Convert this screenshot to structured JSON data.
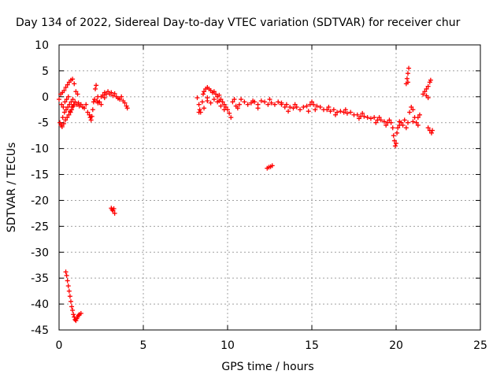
{
  "chart_data": {
    "type": "scatter",
    "title": "Day 134 of 2022, Sidereal Day-to-day VTEC variation (SDTVAR) for receiver chur",
    "xlabel": "GPS time / hours",
    "ylabel": "SDTVAR / TECUs",
    "xlim": [
      0,
      25
    ],
    "ylim": [
      -45,
      10
    ],
    "xticks": [
      0,
      5,
      10,
      15,
      20,
      25
    ],
    "yticks": [
      10,
      5,
      0,
      -5,
      -10,
      -15,
      -20,
      -25,
      -30,
      -35,
      -40,
      -45
    ],
    "grid": true,
    "marker": "+",
    "marker_color": "#ff0000",
    "series": [
      {
        "name": "SDTVAR",
        "points": [
          [
            0.0,
            -0.5
          ],
          [
            0.05,
            -5.0
          ],
          [
            0.1,
            0.5
          ],
          [
            0.12,
            -5.5
          ],
          [
            0.15,
            -1.5
          ],
          [
            0.18,
            -5.8
          ],
          [
            0.2,
            0.8
          ],
          [
            0.22,
            -4.0
          ],
          [
            0.25,
            -2.0
          ],
          [
            0.28,
            -5.2
          ],
          [
            0.3,
            1.2
          ],
          [
            0.32,
            -3.0
          ],
          [
            0.35,
            -1.0
          ],
          [
            0.38,
            -4.5
          ],
          [
            0.4,
            1.8
          ],
          [
            0.42,
            -2.5
          ],
          [
            0.45,
            -0.5
          ],
          [
            0.48,
            -4.0
          ],
          [
            0.5,
            2.3
          ],
          [
            0.52,
            -2.0
          ],
          [
            0.55,
            0.0
          ],
          [
            0.58,
            -3.5
          ],
          [
            0.6,
            2.8
          ],
          [
            0.62,
            -1.5
          ],
          [
            0.65,
            -2.8
          ],
          [
            0.68,
            -3.0
          ],
          [
            0.7,
            3.2
          ],
          [
            0.72,
            -1.0
          ],
          [
            0.75,
            -2.5
          ],
          [
            0.78,
            -2.0
          ],
          [
            0.8,
            3.4
          ],
          [
            0.82,
            -0.5
          ],
          [
            0.85,
            -1.8
          ],
          [
            0.88,
            -1.5
          ],
          [
            0.9,
            2.5
          ],
          [
            0.95,
            -1.0
          ],
          [
            1.0,
            1.0
          ],
          [
            1.05,
            -1.5
          ],
          [
            1.1,
            0.5
          ],
          [
            1.15,
            -1.2
          ],
          [
            1.2,
            -1.8
          ],
          [
            1.3,
            -1.5
          ],
          [
            1.4,
            -2.0
          ],
          [
            1.5,
            -2.2
          ],
          [
            1.6,
            -1.5
          ],
          [
            1.7,
            -3.0
          ],
          [
            1.8,
            -3.5
          ],
          [
            1.85,
            -4.0
          ],
          [
            1.9,
            -4.5
          ],
          [
            1.95,
            -3.8
          ],
          [
            2.0,
            -2.5
          ],
          [
            2.05,
            -1.0
          ],
          [
            2.1,
            -0.5
          ],
          [
            2.15,
            1.5
          ],
          [
            2.2,
            2.2
          ],
          [
            2.25,
            -0.8
          ],
          [
            2.3,
            0.0
          ],
          [
            2.4,
            -1.0
          ],
          [
            2.5,
            0.0
          ],
          [
            2.6,
            0.3
          ],
          [
            2.7,
            0.8
          ],
          [
            2.8,
            0.5
          ],
          [
            2.9,
            1.0
          ],
          [
            3.0,
            0.5
          ],
          [
            3.1,
            0.8
          ],
          [
            3.2,
            0.2
          ],
          [
            3.3,
            0.6
          ],
          [
            3.4,
            0.0
          ],
          [
            3.5,
            -0.3
          ],
          [
            3.6,
            -0.5
          ],
          [
            3.7,
            0.0
          ],
          [
            3.8,
            -0.8
          ],
          [
            3.9,
            -1.2
          ],
          [
            4.0,
            -1.8
          ],
          [
            4.05,
            -2.2
          ],
          [
            2.3,
            -1.2
          ],
          [
            2.5,
            -1.5
          ],
          [
            2.7,
            -0.2
          ],
          [
            3.1,
            -21.5
          ],
          [
            3.15,
            -21.8
          ],
          [
            3.2,
            -22.0
          ],
          [
            3.25,
            -21.6
          ],
          [
            3.3,
            -22.5
          ],
          [
            0.4,
            -33.8
          ],
          [
            0.45,
            -34.5
          ],
          [
            0.5,
            -35.5
          ],
          [
            0.55,
            -36.5
          ],
          [
            0.6,
            -37.5
          ],
          [
            0.65,
            -38.5
          ],
          [
            0.7,
            -39.5
          ],
          [
            0.75,
            -40.5
          ],
          [
            0.8,
            -41.2
          ],
          [
            0.85,
            -42.0
          ],
          [
            0.9,
            -42.5
          ],
          [
            0.95,
            -43.0
          ],
          [
            1.0,
            -43.2
          ],
          [
            1.05,
            -42.8
          ],
          [
            1.1,
            -42.5
          ],
          [
            1.15,
            -42.2
          ],
          [
            1.2,
            -42.0
          ],
          [
            1.3,
            -41.8
          ],
          [
            8.2,
            -0.2
          ],
          [
            8.3,
            -1.5
          ],
          [
            8.35,
            -2.5
          ],
          [
            8.4,
            -3.0
          ],
          [
            8.5,
            -1.0
          ],
          [
            8.55,
            0.5
          ],
          [
            8.6,
            1.0
          ],
          [
            8.7,
            1.5
          ],
          [
            8.8,
            1.8
          ],
          [
            8.9,
            1.5
          ],
          [
            9.0,
            1.2
          ],
          [
            9.1,
            0.8
          ],
          [
            9.2,
            1.0
          ],
          [
            9.3,
            0.5
          ],
          [
            9.4,
            0.0
          ],
          [
            9.5,
            0.3
          ],
          [
            9.6,
            -0.5
          ],
          [
            9.7,
            -1.0
          ],
          [
            9.8,
            -1.5
          ],
          [
            9.9,
            -2.0
          ],
          [
            10.0,
            -2.5
          ],
          [
            10.1,
            -3.2
          ],
          [
            10.2,
            -4.0
          ],
          [
            8.6,
            -2.2
          ],
          [
            8.8,
            -0.8
          ],
          [
            9.0,
            -1.2
          ],
          [
            9.2,
            -0.5
          ],
          [
            9.4,
            -1.0
          ],
          [
            9.6,
            -1.8
          ],
          [
            9.8,
            -2.5
          ],
          [
            10.3,
            -1.0
          ],
          [
            10.5,
            -1.8
          ],
          [
            10.7,
            -1.5
          ],
          [
            10.8,
            -0.5
          ],
          [
            11.0,
            -1.0
          ],
          [
            11.2,
            -1.5
          ],
          [
            11.4,
            -1.2
          ],
          [
            11.6,
            -1.0
          ],
          [
            11.8,
            -1.5
          ],
          [
            12.0,
            -0.8
          ],
          [
            12.2,
            -1.0
          ],
          [
            12.4,
            -1.5
          ],
          [
            12.6,
            -1.2
          ],
          [
            12.8,
            -1.5
          ],
          [
            13.0,
            -1.0
          ],
          [
            13.2,
            -1.5
          ],
          [
            13.4,
            -2.0
          ],
          [
            13.5,
            -1.5
          ],
          [
            13.7,
            -2.0
          ],
          [
            13.9,
            -2.2
          ],
          [
            14.1,
            -2.0
          ],
          [
            14.3,
            -2.5
          ],
          [
            14.5,
            -2.0
          ],
          [
            14.7,
            -1.8
          ],
          [
            14.9,
            -1.5
          ],
          [
            15.0,
            -1.0
          ],
          [
            15.1,
            -1.5
          ],
          [
            15.3,
            -1.8
          ],
          [
            15.5,
            -2.0
          ],
          [
            15.7,
            -2.5
          ],
          [
            15.9,
            -2.5
          ],
          [
            16.1,
            -2.8
          ],
          [
            16.3,
            -2.5
          ],
          [
            16.5,
            -3.0
          ],
          [
            16.7,
            -2.8
          ],
          [
            16.9,
            -3.0
          ],
          [
            17.1,
            -3.2
          ],
          [
            17.3,
            -3.0
          ],
          [
            17.5,
            -3.5
          ],
          [
            17.7,
            -3.5
          ],
          [
            17.9,
            -3.8
          ],
          [
            18.1,
            -3.8
          ],
          [
            18.3,
            -4.0
          ],
          [
            18.5,
            -4.2
          ],
          [
            18.7,
            -4.0
          ],
          [
            18.9,
            -4.5
          ],
          [
            19.1,
            -4.5
          ],
          [
            19.3,
            -4.8
          ],
          [
            19.5,
            -5.0
          ],
          [
            19.7,
            -5.0
          ],
          [
            19.8,
            -6.0
          ],
          [
            19.85,
            -7.5
          ],
          [
            19.9,
            -8.5
          ],
          [
            19.95,
            -9.5
          ],
          [
            20.0,
            -9.0
          ],
          [
            20.05,
            -7.0
          ],
          [
            20.1,
            -6.0
          ],
          [
            20.2,
            -5.5
          ],
          [
            20.3,
            -5.0
          ],
          [
            20.4,
            -5.5
          ],
          [
            20.5,
            -4.5
          ],
          [
            20.6,
            -6.0
          ],
          [
            20.7,
            -5.0
          ],
          [
            20.8,
            -3.0
          ],
          [
            20.9,
            -2.0
          ],
          [
            21.0,
            -2.5
          ],
          [
            21.1,
            -4.0
          ],
          [
            21.2,
            -5.0
          ],
          [
            21.3,
            -4.0
          ],
          [
            21.4,
            -3.5
          ],
          [
            20.6,
            2.5
          ],
          [
            20.65,
            3.5
          ],
          [
            20.7,
            4.5
          ],
          [
            20.75,
            5.5
          ],
          [
            20.7,
            2.8
          ],
          [
            21.6,
            0.5
          ],
          [
            21.7,
            1.0
          ],
          [
            21.8,
            1.5
          ],
          [
            21.9,
            2.0
          ],
          [
            22.0,
            2.8
          ],
          [
            22.05,
            3.2
          ],
          [
            21.8,
            0.2
          ],
          [
            21.9,
            -0.2
          ],
          [
            21.9,
            -6.0
          ],
          [
            22.0,
            -6.5
          ],
          [
            22.1,
            -7.0
          ],
          [
            22.15,
            -6.5
          ],
          [
            12.35,
            -13.8
          ],
          [
            12.45,
            -13.6
          ],
          [
            12.55,
            -13.5
          ],
          [
            12.65,
            -13.3
          ],
          [
            8.3,
            -3.0
          ],
          [
            8.8,
            -0.2
          ],
          [
            9.5,
            -0.8
          ],
          [
            10.4,
            -0.5
          ],
          [
            11.5,
            -0.8
          ],
          [
            12.5,
            -0.5
          ],
          [
            13.2,
            -1.2
          ],
          [
            14.0,
            -1.5
          ],
          [
            15.2,
            -2.5
          ],
          [
            16.0,
            -2.0
          ],
          [
            17.0,
            -2.5
          ],
          [
            18.0,
            -3.2
          ],
          [
            19.0,
            -4.0
          ],
          [
            19.6,
            -4.5
          ],
          [
            10.6,
            -2.2
          ],
          [
            11.8,
            -2.2
          ],
          [
            13.6,
            -2.8
          ],
          [
            14.8,
            -2.8
          ],
          [
            16.4,
            -3.5
          ],
          [
            17.8,
            -4.2
          ],
          [
            18.8,
            -5.0
          ],
          [
            19.4,
            -5.5
          ],
          [
            20.2,
            -4.8
          ],
          [
            21.0,
            -4.8
          ],
          [
            21.3,
            -5.5
          ]
        ]
      }
    ]
  }
}
